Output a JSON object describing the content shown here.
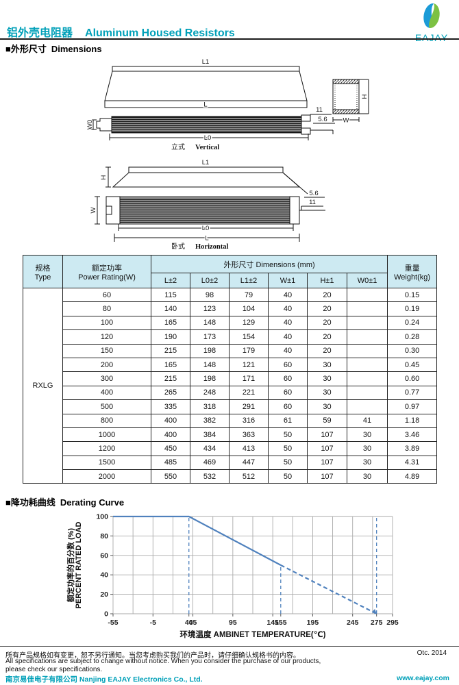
{
  "header": {
    "title_zh": "铝外壳电阻器",
    "title_en": "Aluminum Housed Resistors",
    "logo_text": "EAJAY"
  },
  "section_dimensions": {
    "label_zh": "■外形尺寸",
    "label_en": "Dimensions"
  },
  "section_derating": {
    "label_zh": "■降功耗曲线",
    "label_en": "Derating Curve"
  },
  "drawings": {
    "vertical": {
      "l1": "L1",
      "l": "L",
      "w0": "W0",
      "dim11": "11",
      "dim56": "5.6",
      "l0": "L0",
      "cs_h": "H",
      "cs_w": "W",
      "caption_zh": "立式",
      "caption_en": "Vertical"
    },
    "horizontal": {
      "l1": "L1",
      "h": "H",
      "w": "W",
      "dim56": "5.6",
      "dim11": "11",
      "l0": "L0",
      "l": "L",
      "caption_zh": "卧式",
      "caption_en": "Horizontal"
    }
  },
  "table": {
    "header": {
      "type_zh": "规格",
      "type_en": "Type",
      "power_zh": "额定功率",
      "power_en": "Power Rating(W)",
      "dims_group": "外形尺寸  Dimensions (mm)",
      "dim_cols": [
        "L±2",
        "L0±2",
        "L1±2",
        "W±1",
        "H±1",
        "W0±1"
      ],
      "weight_zh": "重量",
      "weight_en": "Weight(kg)"
    },
    "type_value": "RXLG",
    "rows": [
      [
        "60",
        "115",
        "98",
        "79",
        "40",
        "20",
        "",
        "0.15"
      ],
      [
        "80",
        "140",
        "123",
        "104",
        "40",
        "20",
        "",
        "0.19"
      ],
      [
        "100",
        "165",
        "148",
        "129",
        "40",
        "20",
        "",
        "0.24"
      ],
      [
        "120",
        "190",
        "173",
        "154",
        "40",
        "20",
        "",
        "0.28"
      ],
      [
        "150",
        "215",
        "198",
        "179",
        "40",
        "20",
        "",
        "0.30"
      ],
      [
        "200",
        "165",
        "148",
        "121",
        "60",
        "30",
        "",
        "0.45"
      ],
      [
        "300",
        "215",
        "198",
        "171",
        "60",
        "30",
        "",
        "0.60"
      ],
      [
        "400",
        "265",
        "248",
        "221",
        "60",
        "30",
        "",
        "0.77"
      ],
      [
        "500",
        "335",
        "318",
        "291",
        "60",
        "30",
        "",
        "0.97"
      ],
      [
        "800",
        "400",
        "382",
        "316",
        "61",
        "59",
        "41",
        "1.18"
      ],
      [
        "1000",
        "400",
        "384",
        "363",
        "50",
        "107",
        "30",
        "3.46"
      ],
      [
        "1200",
        "450",
        "434",
        "413",
        "50",
        "107",
        "30",
        "3.89"
      ],
      [
        "1500",
        "485",
        "469",
        "447",
        "50",
        "107",
        "30",
        "4.31"
      ],
      [
        "2000",
        "550",
        "532",
        "512",
        "50",
        "107",
        "30",
        "4.89"
      ]
    ]
  },
  "chart_data": {
    "type": "line",
    "xlabel": "环境温度  AMBINET TEMPERATURE(℃)",
    "ylabel_zh": "额定功率的百分数 (%)",
    "ylabel_en": "PERCENT RATED LOAD",
    "xlim": [
      -55,
      295
    ],
    "ylim": [
      0,
      100
    ],
    "x_grid_step": 25,
    "y_grid_step": 20,
    "x_ticks": [
      -55,
      -5,
      40,
      45,
      95,
      145,
      155,
      195,
      245,
      275,
      295
    ],
    "y_ticks": [
      0,
      20,
      40,
      60,
      80,
      100
    ],
    "series": [
      {
        "name": "derating-solid",
        "style": "solid",
        "points": [
          [
            -55,
            100
          ],
          [
            40,
            100
          ],
          [
            155,
            50
          ]
        ]
      },
      {
        "name": "derating-projected",
        "style": "dashed",
        "points": [
          [
            155,
            50
          ],
          [
            275,
            0
          ]
        ],
        "arrow_end": true
      }
    ],
    "reference_lines": [
      {
        "x": 40,
        "y1": 0,
        "y2": 100
      },
      {
        "x": 155,
        "y1": 0,
        "y2": 50
      },
      {
        "x": 275,
        "y1": 0,
        "y2": 100
      }
    ],
    "line_color": "#4f81bd",
    "grid_color": "#aaaaaa",
    "legend": null
  },
  "footer": {
    "line1_zh": "所有产品规格如有变更，恕不另行通知。当您考虑购买我们的产品时，请仔细确认规格书的内容。",
    "date": "Otc. 2014",
    "line2_en": "All specifications are subject to change without notice. When you consider the purchase of our products,",
    "line3_en": "please check our specifications.",
    "company": "南京易佳电子有限公司  Nanjing EAJAY Electronics Co., Ltd.",
    "website": "www.eajay.com"
  },
  "colors": {
    "accent": "#00a0b8",
    "table_header_bg": "#cdeaf2",
    "logo_blue": "#1b9bd7",
    "logo_green": "#7cc143"
  }
}
